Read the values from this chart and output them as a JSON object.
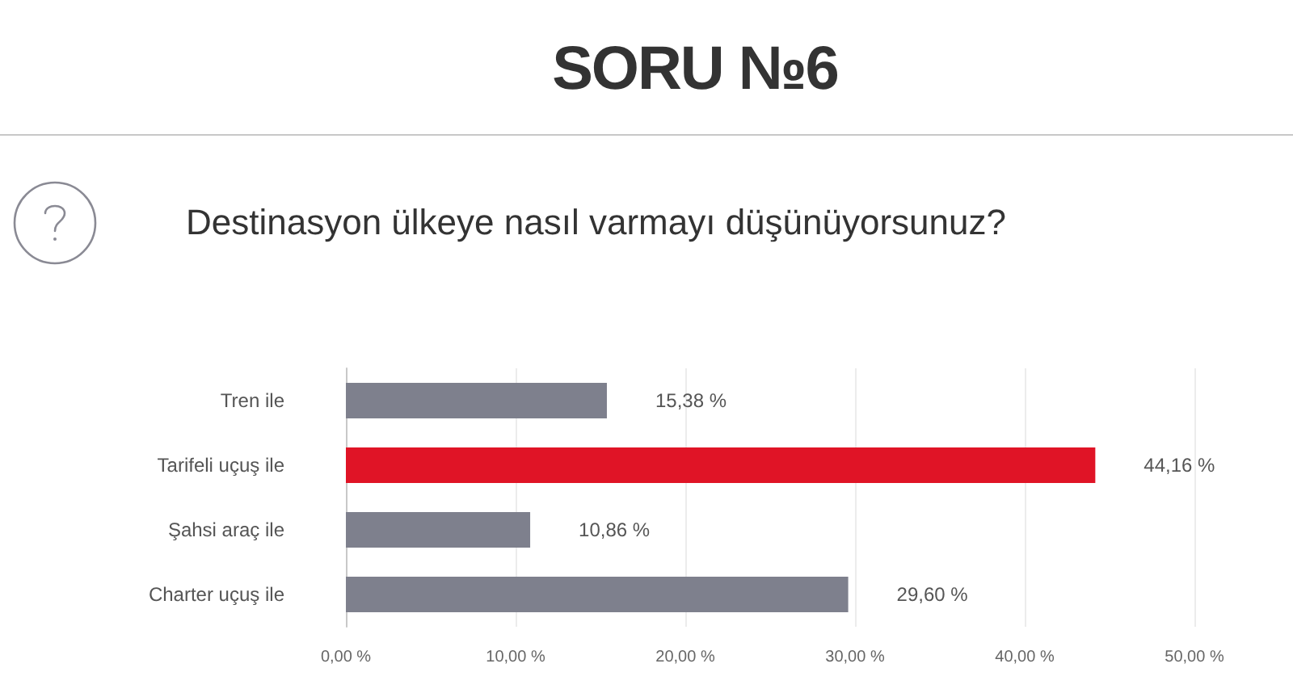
{
  "chart_data": {
    "type": "bar",
    "orientation": "horizontal",
    "title": "SORU №6",
    "subtitle": "Destinasyon ülkeye nasıl varmayı düşünüyorsunuz?",
    "categories": [
      "Tren ile",
      "Tarifeli uçuş ile",
      "Şahsi araç ile",
      "Charter uçuş ile"
    ],
    "values": [
      15.38,
      44.16,
      10.86,
      29.6
    ],
    "value_labels": [
      "15,38 %",
      "44,16 %",
      "10,86 %",
      "29,60 %"
    ],
    "colors": [
      "#7e808d",
      "#e01426",
      "#7e808d",
      "#7e808d"
    ],
    "xlim": [
      0,
      50
    ],
    "xticks": [
      {
        "value": 0,
        "label": "0,00 %"
      },
      {
        "value": 10,
        "label": "10,00 %"
      },
      {
        "value": 20,
        "label": "20,00 %"
      },
      {
        "value": 30,
        "label": "30,00 %"
      },
      {
        "value": 40,
        "label": "40,00 %"
      },
      {
        "value": 50,
        "label": "50,00 %"
      }
    ],
    "grid": "x"
  }
}
